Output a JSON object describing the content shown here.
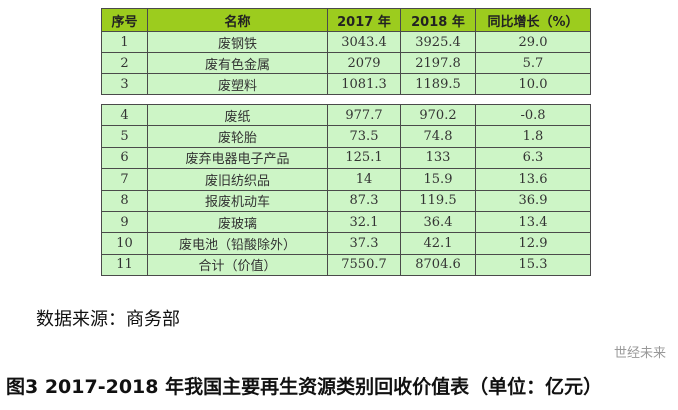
{
  "headers": [
    "序号",
    "名称",
    "2017 年",
    "2018 年",
    "同比增长（%）"
  ],
  "rows_top": [
    [
      "1",
      "废钢铁",
      "3043.4",
      "3925.4",
      "29.0"
    ],
    [
      "2",
      "废有色金属",
      "2079",
      "2197.8",
      "5.7"
    ],
    [
      "3",
      "废塑料",
      "1081.3",
      "1189.5",
      "10.0"
    ]
  ],
  "rows_bottom": [
    [
      "4",
      "废纸",
      "977.7",
      "970.2",
      "-0.8"
    ],
    [
      "5",
      "废轮胎",
      "73.5",
      "74.8",
      "1.8"
    ],
    [
      "6",
      "废弃电器电子产品",
      "125.1",
      "133",
      "6.3"
    ],
    [
      "7",
      "废旧纺织品",
      "14",
      "15.9",
      "13.6"
    ],
    [
      "8",
      "报废机动车",
      "87.3",
      "119.5",
      "36.9"
    ],
    [
      "9",
      "废玻璃",
      "32.1",
      "36.4",
      "13.4"
    ],
    [
      "10",
      "废电池（铅酸除外）",
      "37.3",
      "42.1",
      "12.9"
    ],
    [
      "11",
      "合计（价值）",
      "7550.7",
      "8704.6",
      "15.3"
    ]
  ],
  "source": "数据来源：商务部",
  "caption": "图3 2017-2018 年我国主要再生资源类别回收价值表（单位：亿元）",
  "watermark": "世经未来",
  "colors": {
    "header": "#9ccc1e",
    "row": "#cdf5c6"
  }
}
